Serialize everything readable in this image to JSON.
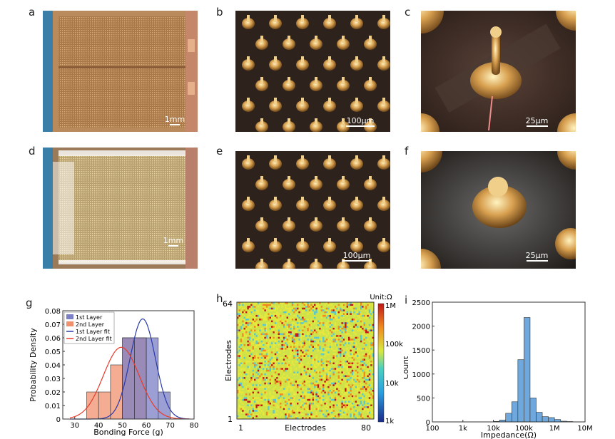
{
  "panels": {
    "a": {
      "label": "a",
      "scale": "1mm"
    },
    "b": {
      "label": "b",
      "scale": "100μm"
    },
    "c": {
      "label": "c",
      "scale": "25μm"
    },
    "d": {
      "label": "d",
      "scale": "1mm"
    },
    "e": {
      "label": "e",
      "scale": "100μm"
    },
    "f": {
      "label": "f",
      "scale": "25μm"
    },
    "g": {
      "label": "g"
    },
    "h": {
      "label": "h",
      "unit": "Unit:Ω"
    },
    "i": {
      "label": "i"
    }
  },
  "chart_data": [
    {
      "id": "g",
      "type": "bar",
      "xlabel": "Bonding Force (g)",
      "ylabel": "Probability Density",
      "xlim": [
        25,
        80
      ],
      "ylim": [
        0,
        0.08
      ],
      "xticks": [
        "30",
        "40",
        "50",
        "60",
        "70",
        "80"
      ],
      "yticks": [
        "0",
        "0.01",
        "0.02",
        "0.03",
        "0.04",
        "0.05",
        "0.06",
        "0.07",
        "0.08"
      ],
      "legend_position": "top-left",
      "legend": [
        "1st Layer",
        "2nd Layer",
        "1st Layer fit",
        "2nd Layer fit"
      ],
      "series": [
        {
          "name": "1st Layer",
          "color": "#7b7fc4",
          "bins": [
            [
              50,
              55,
              0.06
            ],
            [
              55,
              60,
              0.06
            ],
            [
              60,
              65,
              0.06
            ],
            [
              65,
              70,
              0.02
            ]
          ]
        },
        {
          "name": "2nd Layer",
          "color": "#f0906e",
          "bins": [
            [
              35,
              40,
              0.02
            ],
            [
              40,
              45,
              0.02
            ],
            [
              45,
              50,
              0.04
            ],
            [
              50,
              55,
              0.06
            ],
            [
              55,
              60,
              0.06
            ]
          ]
        },
        {
          "name": "1st Layer fit",
          "color": "#2a3aa8",
          "mean": 58.5,
          "sd": 5.3
        },
        {
          "name": "2nd Layer fit",
          "color": "#e83b2a",
          "mean": 49.5,
          "sd": 7.5
        }
      ]
    },
    {
      "id": "h",
      "type": "heatmap",
      "xlabel": "Electrodes",
      "ylabel": "Electrodes",
      "xticks": [
        "1",
        "80"
      ],
      "yticks": [
        "1",
        "64"
      ],
      "columns": 80,
      "rows": 64,
      "colorbar": {
        "ticks": [
          "1M",
          "100k",
          "10k",
          "1k"
        ],
        "range": [
          "1k",
          "1M"
        ],
        "scale": "log"
      }
    },
    {
      "id": "i",
      "type": "bar",
      "xlabel": "Impedance(Ω)",
      "ylabel": "Count",
      "xscale": "log",
      "ylim": [
        0,
        2500
      ],
      "xticks": [
        "100",
        "1k",
        "10k",
        "100k",
        "1M",
        "10M"
      ],
      "yticks": [
        "0",
        "500",
        "1000",
        "1500",
        "2000",
        "2500"
      ],
      "color": "#6fa8dc",
      "bins_log10": [
        [
          4.0,
          4.2,
          10
        ],
        [
          4.2,
          4.4,
          40
        ],
        [
          4.4,
          4.6,
          180
        ],
        [
          4.6,
          4.8,
          420
        ],
        [
          4.8,
          5.0,
          1300
        ],
        [
          5.0,
          5.2,
          2180
        ],
        [
          5.2,
          5.4,
          500
        ],
        [
          5.4,
          5.6,
          200
        ],
        [
          5.6,
          5.8,
          110
        ],
        [
          5.8,
          6.0,
          90
        ],
        [
          6.0,
          6.2,
          50
        ],
        [
          6.2,
          6.4,
          15
        ],
        [
          6.4,
          6.6,
          8
        ]
      ]
    }
  ],
  "colors": {
    "gold": "#d8b060",
    "dark": "#3a2b22",
    "chip": "#b88a5c",
    "blue_edge": "#3a7fa8"
  }
}
